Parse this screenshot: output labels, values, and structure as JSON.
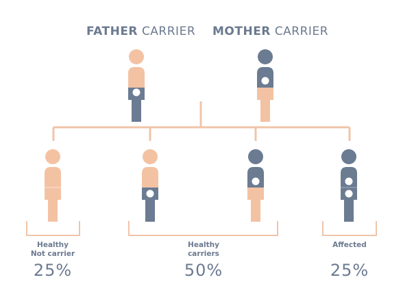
{
  "colors": {
    "healthy": "#f3c2a3",
    "carrier": "#6b7b92",
    "line": "#f0c4a8",
    "text": "#6c7a90"
  },
  "parents": {
    "father": {
      "bold": "FATHER",
      "rest": "CARRIER"
    },
    "mother": {
      "bold": "MOTHER",
      "rest": "CARRIER"
    }
  },
  "outcomes": [
    {
      "label_line1": "Healthy",
      "label_line2": "Not carrier",
      "percent": "25%"
    },
    {
      "label_line1": "Healthy",
      "label_line2": "carriers",
      "percent": "50%"
    },
    {
      "label_line1": "Affected",
      "label_line2": "",
      "percent": "25%"
    }
  ]
}
